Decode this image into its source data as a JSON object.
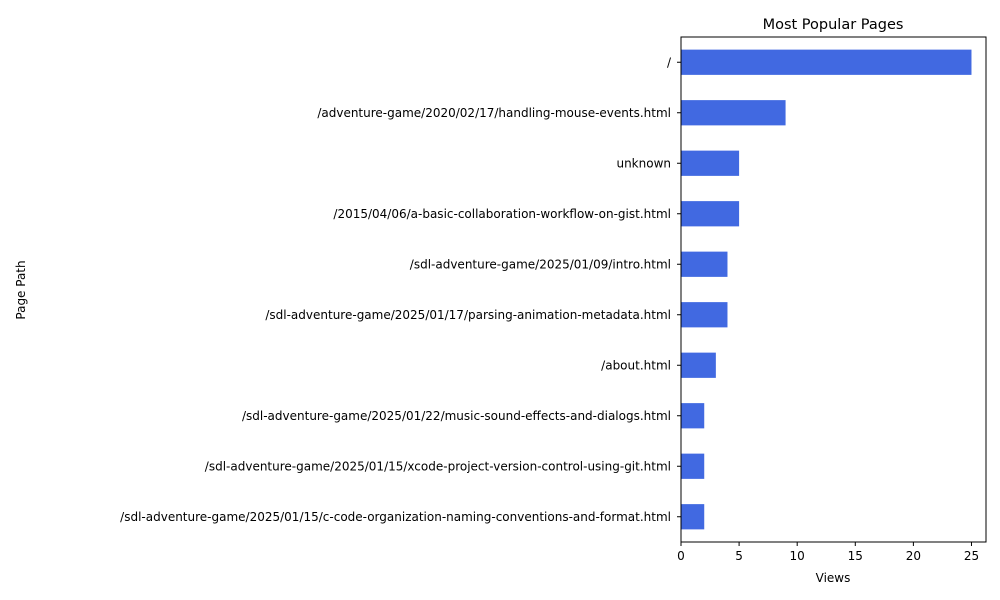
{
  "chart_data": {
    "type": "bar",
    "orientation": "horizontal",
    "title": "Most Popular Pages",
    "xlabel": "Views",
    "ylabel": "Page Path",
    "xlim": [
      0,
      26.25
    ],
    "xticks": [
      0,
      5,
      10,
      15,
      20,
      25
    ],
    "grid": false,
    "bar_color": "#4169E1",
    "categories": [
      "/",
      "/adventure-game/2020/02/17/handling-mouse-events.html",
      "unknown",
      "/2015/04/06/a-basic-collaboration-workflow-on-gist.html",
      "/sdl-adventure-game/2025/01/09/intro.html",
      "/sdl-adventure-game/2025/01/17/parsing-animation-metadata.html",
      "/about.html",
      "/sdl-adventure-game/2025/01/22/music-sound-effects-and-dialogs.html",
      "/sdl-adventure-game/2025/01/15/xcode-project-version-control-using-git.html",
      "/sdl-adventure-game/2025/01/15/c-code-organization-naming-conventions-and-format.html"
    ],
    "values": [
      25,
      9,
      5,
      5,
      4,
      4,
      3,
      2,
      2,
      2
    ]
  }
}
